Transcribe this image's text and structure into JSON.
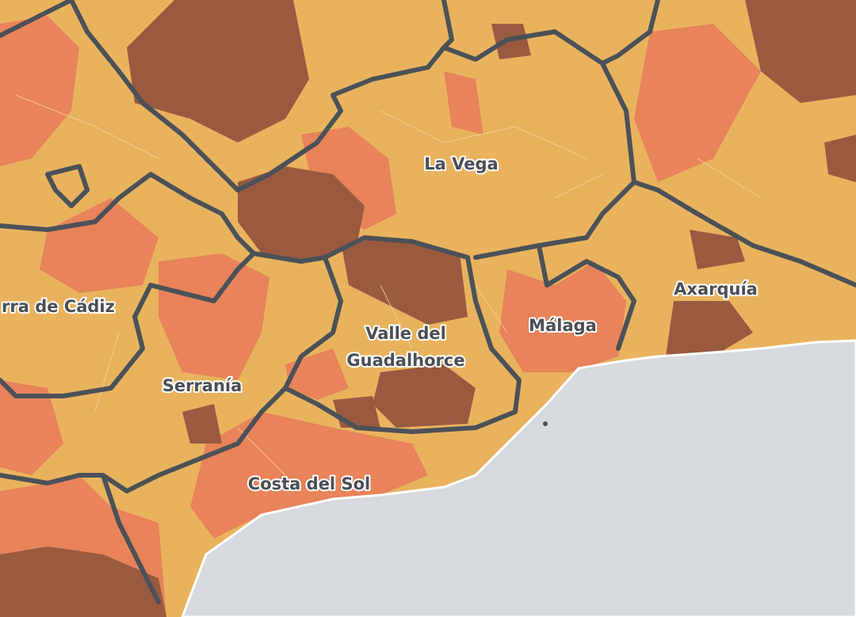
{
  "labels": [
    {
      "lines": [
        "La Vega"
      ]
    },
    {
      "lines": [
        "rra de Cádiz"
      ]
    },
    {
      "lines": [
        "Valle del",
        "Guadalhorce"
      ]
    },
    {
      "lines": [
        "Málaga"
      ]
    },
    {
      "lines": [
        "Axarquía"
      ]
    },
    {
      "lines": [
        "Serranía"
      ]
    },
    {
      "lines": [
        "Costa del Sol"
      ]
    }
  ]
}
